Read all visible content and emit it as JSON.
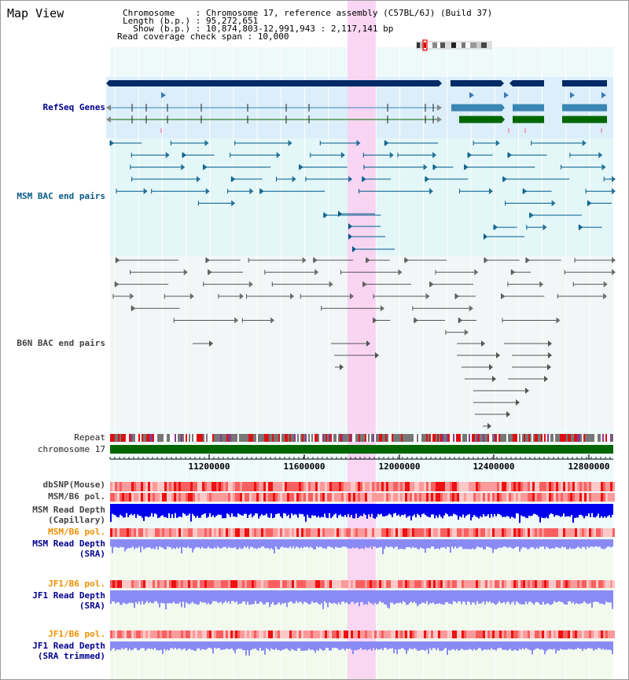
{
  "title": "Map View",
  "info": {
    "chromosome": "Chromosome    : Chromosome 17, reference assembly (C57BL/6J) (Build 37)",
    "length": "Length (b.p.) : 95,272,651",
    "show": "  Show (b.p.) : 10,874,803-12,991,943 : 2,117,141 bp",
    "coverage": "Read coverage check span : 10,000"
  },
  "tracks": {
    "refseq": "RefSeq Genes",
    "msm_bac": "MSM BAC end pairs",
    "b6n_bac": "B6N BAC end pairs",
    "repeat": "Repeat",
    "chromosome": "chromosome 17",
    "dbsnp": "dbSNP(Mouse)",
    "msm_b6_pol_cap": "MSM/B6 pol.",
    "msm_depth_cap_1": "MSM Read Depth",
    "msm_depth_cap_2": "(Capillary)",
    "msm_b6_pol_sra": "MSM/B6 pol.",
    "msm_depth_sra_1": "MSM Read Depth",
    "msm_depth_sra_2": "(SRA)",
    "jf1_pol_1": "JF1/B6 pol.",
    "jf1_depth_1": "JF1 Read Depth",
    "jf1_depth_1b": "(SRA)",
    "jf1_pol_2": "JF1/B6 pol.",
    "jf1_depth_2": "JF1 Read Depth",
    "jf1_depth_2b": "(SRA trimmed)"
  },
  "axis": {
    "ticks": [
      "11200000",
      "11600000",
      "12000000",
      "12400000",
      "12800000"
    ]
  },
  "colors": {
    "highlight": "#f9d2f2",
    "refseq_dark": "#002a66",
    "refseq_mid": "#3a86b4",
    "refseq_green": "#006600",
    "msm_line": "#005a88",
    "b6n_line": "#555555",
    "chromosome_bar": "#006600",
    "polymorphism": "#ff4444",
    "depth_capillary": "#0000ee",
    "depth_sra": "#8a8af5"
  }
}
